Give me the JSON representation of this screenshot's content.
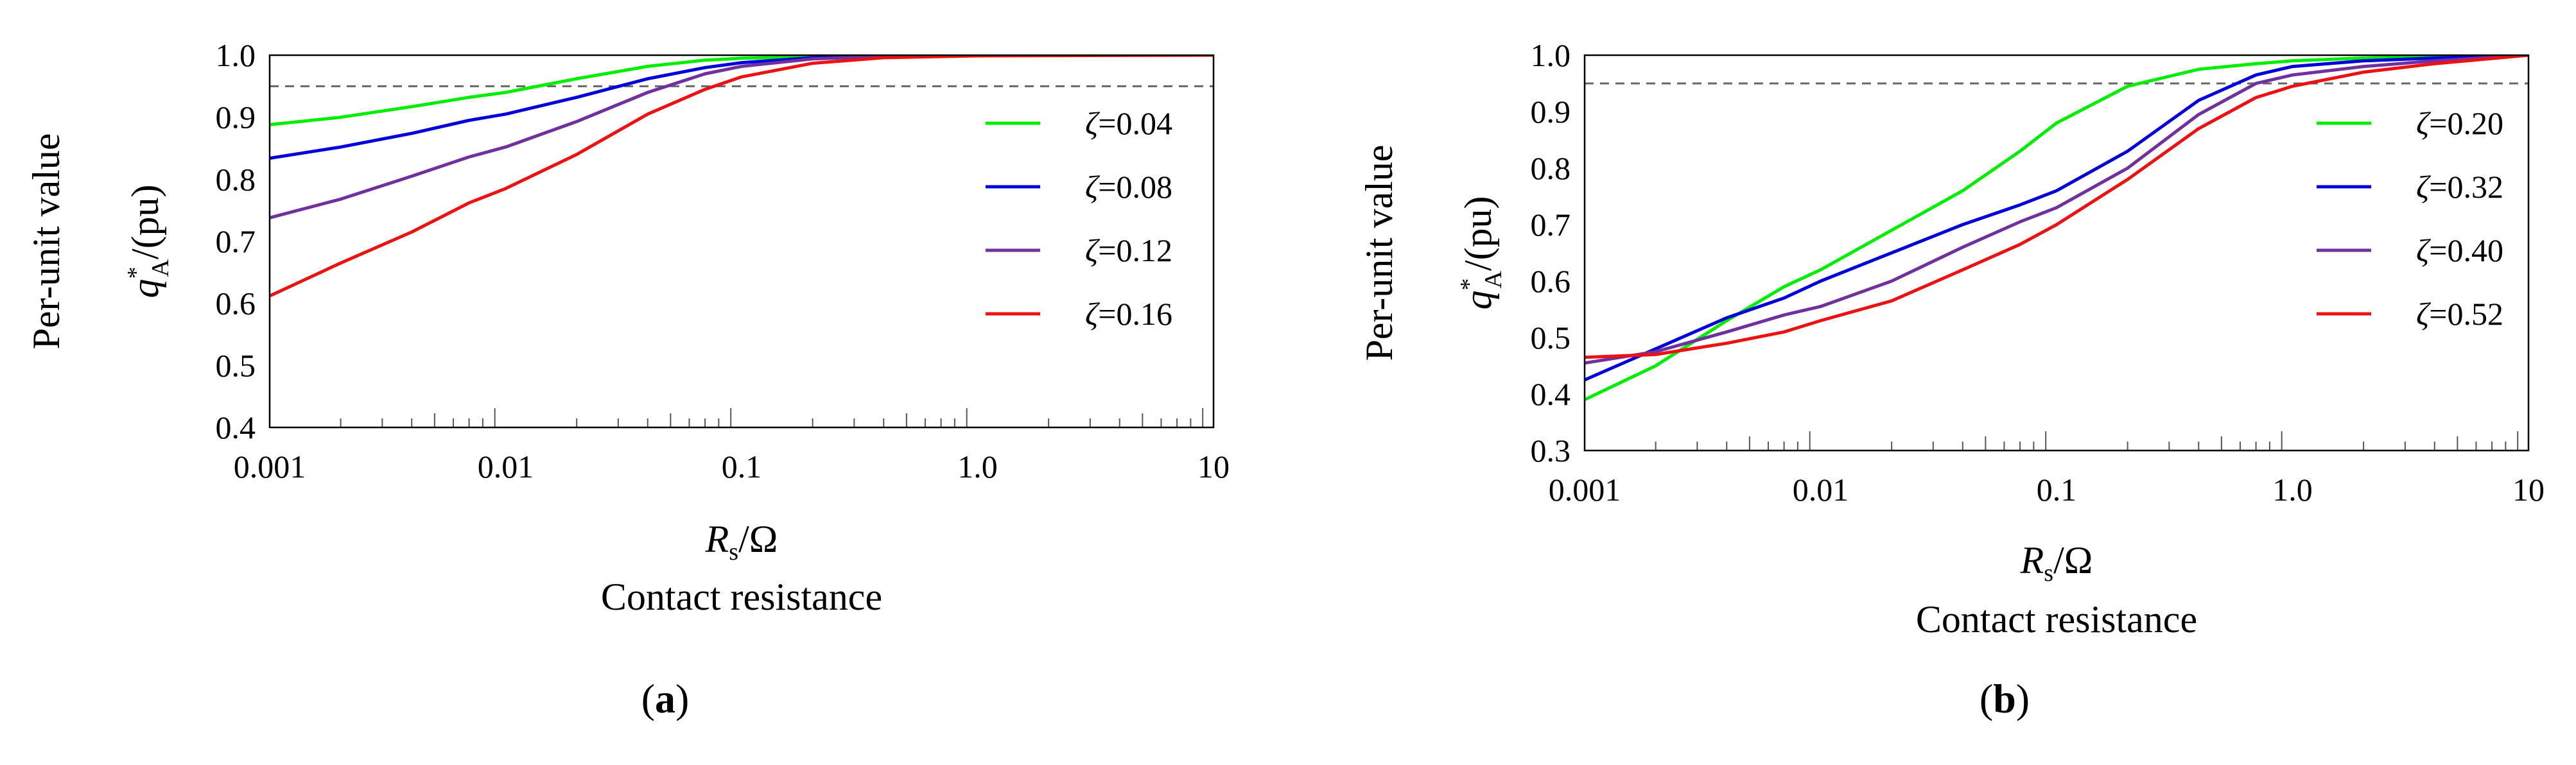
{
  "figure": {
    "panels": [
      "(a)",
      "(b)"
    ]
  },
  "chart_data": [
    {
      "panel_label": "(a)",
      "type": "line",
      "title": "",
      "xlabel_symbol": "R",
      "xlabel_sub": "s",
      "xlabel_unit": "/Ω",
      "xlabel_desc": "Contact resistance",
      "ylabel_line1": "Per-unit value",
      "ylabel_symbol": "q",
      "ylabel_sup": "*",
      "ylabel_sub": "A",
      "ylabel_unit": "/(pu)",
      "xscale": "log",
      "xlim": [
        0.001,
        10
      ],
      "ylim": [
        0.4,
        1.0
      ],
      "xticks": [
        0.001,
        0.01,
        0.1,
        1.0,
        10
      ],
      "xtick_labels": [
        "0.001",
        "0.01",
        "0.1",
        "1.0",
        "10"
      ],
      "yticks": [
        0.4,
        0.5,
        0.6,
        0.7,
        0.8,
        0.9,
        1.0
      ],
      "ytick_labels": [
        "0.4",
        "0.5",
        "0.6",
        "0.7",
        "0.8",
        "0.9",
        "1.0"
      ],
      "reference_line": 0.95,
      "legend_position": "right",
      "series": [
        {
          "name": "ζ=0.04",
          "symbol": "ζ",
          "value_text": "=0.04",
          "color": "#00ee00",
          "x": [
            0.001,
            0.002,
            0.004,
            0.007,
            0.01,
            0.02,
            0.04,
            0.07,
            0.1,
            0.2,
            0.4,
            1.0,
            10
          ],
          "y": [
            0.888,
            0.9,
            0.917,
            0.932,
            0.94,
            0.962,
            0.982,
            0.992,
            0.995,
            0.998,
            0.999,
            1.0,
            1.0
          ]
        },
        {
          "name": "ζ=0.08",
          "symbol": "ζ",
          "value_text": "=0.08",
          "color": "#0000dd",
          "x": [
            0.001,
            0.002,
            0.004,
            0.007,
            0.01,
            0.02,
            0.04,
            0.07,
            0.1,
            0.2,
            0.4,
            1.0,
            10
          ],
          "y": [
            0.834,
            0.852,
            0.874,
            0.895,
            0.905,
            0.932,
            0.962,
            0.98,
            0.988,
            0.996,
            0.999,
            1.0,
            1.0
          ]
        },
        {
          "name": "ζ=0.12",
          "symbol": "ζ",
          "value_text": "=0.12",
          "color": "#7030a0",
          "x": [
            0.001,
            0.002,
            0.004,
            0.007,
            0.01,
            0.02,
            0.04,
            0.07,
            0.1,
            0.2,
            0.4,
            1.0,
            10
          ],
          "y": [
            0.738,
            0.768,
            0.805,
            0.836,
            0.852,
            0.893,
            0.94,
            0.97,
            0.982,
            0.994,
            0.998,
            1.0,
            1.0
          ]
        },
        {
          "name": "ζ=0.16",
          "symbol": "ζ",
          "value_text": "=0.16",
          "color": "#ee1111",
          "x": [
            0.001,
            0.002,
            0.004,
            0.007,
            0.01,
            0.02,
            0.04,
            0.07,
            0.1,
            0.2,
            0.4,
            1.0,
            10
          ],
          "y": [
            0.612,
            0.665,
            0.715,
            0.762,
            0.785,
            0.84,
            0.905,
            0.945,
            0.965,
            0.987,
            0.996,
            0.999,
            1.0
          ]
        }
      ]
    },
    {
      "panel_label": "(b)",
      "type": "line",
      "title": "",
      "xlabel_symbol": "R",
      "xlabel_sub": "s",
      "xlabel_unit": "/Ω",
      "xlabel_desc": "Contact resistance",
      "ylabel_line1": "Per-unit value",
      "ylabel_symbol": "q",
      "ylabel_sup": "*",
      "ylabel_sub": "A",
      "ylabel_unit": "/(pu)",
      "xscale": "log",
      "xlim": [
        0.001,
        10
      ],
      "ylim": [
        0.3,
        1.0
      ],
      "xticks": [
        0.001,
        0.01,
        0.1,
        1.0,
        10
      ],
      "xtick_labels": [
        "0.001",
        "0.01",
        "0.1",
        "1.0",
        "10"
      ],
      "yticks": [
        0.3,
        0.4,
        0.5,
        0.6,
        0.7,
        0.8,
        0.9,
        1.0
      ],
      "ytick_labels": [
        "0.3",
        "0.4",
        "0.5",
        "0.6",
        "0.7",
        "0.8",
        "0.9",
        "1.0"
      ],
      "reference_line": 0.95,
      "legend_position": "right",
      "series": [
        {
          "name": "ζ=0.20",
          "symbol": "ζ",
          "value_text": "=0.20",
          "color": "#00ee00",
          "x": [
            0.001,
            0.002,
            0.004,
            0.007,
            0.01,
            0.02,
            0.04,
            0.07,
            0.1,
            0.2,
            0.4,
            0.7,
            1.0,
            2.0,
            4.0,
            10
          ],
          "y": [
            0.39,
            0.45,
            0.53,
            0.59,
            0.62,
            0.69,
            0.76,
            0.83,
            0.88,
            0.945,
            0.975,
            0.985,
            0.99,
            0.995,
            0.998,
            1.0
          ]
        },
        {
          "name": "ζ=0.32",
          "symbol": "ζ",
          "value_text": "=0.32",
          "color": "#0000dd",
          "x": [
            0.001,
            0.002,
            0.004,
            0.007,
            0.01,
            0.02,
            0.04,
            0.07,
            0.1,
            0.2,
            0.4,
            0.7,
            1.0,
            2.0,
            4.0,
            10
          ],
          "y": [
            0.425,
            0.48,
            0.535,
            0.57,
            0.6,
            0.65,
            0.7,
            0.735,
            0.76,
            0.83,
            0.92,
            0.965,
            0.98,
            0.99,
            0.995,
            1.0
          ]
        },
        {
          "name": "ζ=0.40",
          "symbol": "ζ",
          "value_text": "=0.40",
          "color": "#7030a0",
          "x": [
            0.001,
            0.002,
            0.004,
            0.007,
            0.01,
            0.02,
            0.04,
            0.07,
            0.1,
            0.2,
            0.4,
            0.7,
            1.0,
            2.0,
            4.0,
            10
          ],
          "y": [
            0.455,
            0.475,
            0.51,
            0.54,
            0.555,
            0.6,
            0.66,
            0.705,
            0.73,
            0.8,
            0.895,
            0.95,
            0.965,
            0.98,
            0.99,
            1.0
          ]
        },
        {
          "name": "ζ=0.52",
          "symbol": "ζ",
          "value_text": "=0.52",
          "color": "#ee1111",
          "x": [
            0.001,
            0.002,
            0.004,
            0.007,
            0.01,
            0.02,
            0.04,
            0.07,
            0.1,
            0.2,
            0.4,
            0.7,
            1.0,
            2.0,
            4.0,
            10
          ],
          "y": [
            0.465,
            0.47,
            0.49,
            0.51,
            0.53,
            0.565,
            0.62,
            0.665,
            0.7,
            0.78,
            0.87,
            0.925,
            0.945,
            0.97,
            0.985,
            1.0
          ]
        }
      ]
    }
  ]
}
